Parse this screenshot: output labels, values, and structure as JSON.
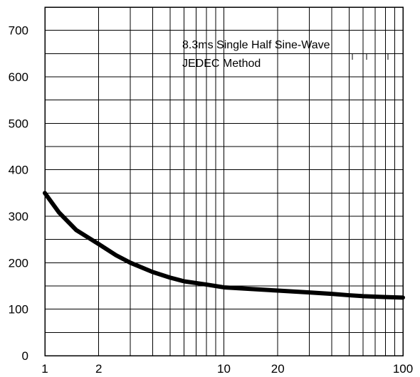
{
  "chart_data": {
    "type": "line",
    "title": "",
    "xlabel": "",
    "ylabel": "",
    "xscale": "log",
    "xlim": [
      1,
      100
    ],
    "ylim": [
      0,
      750
    ],
    "grid": true,
    "annotations": [
      "8.3ms Single Half Sine-Wave",
      "JEDEC Method"
    ],
    "x_tick_labels": [
      {
        "value": 1,
        "label": "1"
      },
      {
        "value": 2,
        "label": "2"
      },
      {
        "value": 10,
        "label": "10"
      },
      {
        "value": 20,
        "label": "20"
      },
      {
        "value": 100,
        "label": "100"
      }
    ],
    "y_tick_labels": [
      {
        "value": 0,
        "label": "0"
      },
      {
        "value": 100,
        "label": "100"
      },
      {
        "value": 200,
        "label": "200"
      },
      {
        "value": 300,
        "label": "300"
      },
      {
        "value": 400,
        "label": "400"
      },
      {
        "value": 500,
        "label": "500"
      },
      {
        "value": 600,
        "label": "600"
      },
      {
        "value": 700,
        "label": "700"
      }
    ],
    "series": [
      {
        "x": [
          1,
          1.2,
          1.5,
          2,
          2.5,
          3,
          4,
          5,
          6,
          8,
          10,
          15,
          20,
          30,
          40,
          50,
          60,
          80,
          100
        ],
        "y": [
          350,
          308,
          270,
          240,
          216,
          200,
          180,
          168,
          160,
          153,
          147,
          143,
          140,
          136,
          133,
          130,
          128,
          126,
          125
        ]
      }
    ]
  }
}
